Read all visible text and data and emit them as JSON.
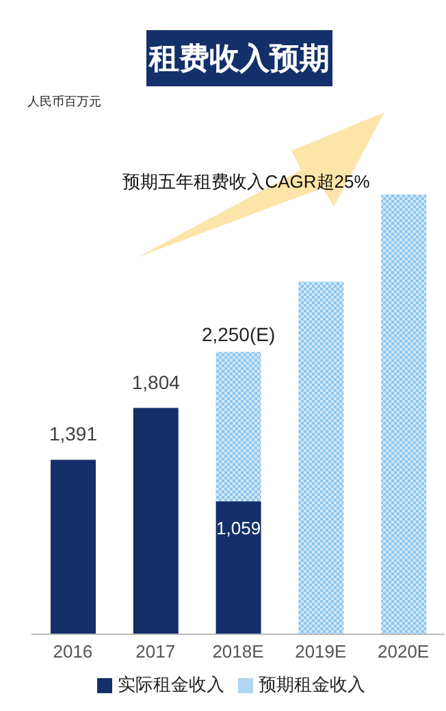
{
  "chart_data": {
    "type": "bar",
    "title": "租费收入预期",
    "stacked": true,
    "categories": [
      "2016",
      "2017",
      "2018E",
      "2019E",
      "2020E"
    ],
    "series": [
      {
        "name": "实际租金收入",
        "color": "#14306a",
        "values": [
          1391,
          1804,
          1059,
          null,
          null
        ],
        "value_labels": [
          "1,391",
          "1,804",
          "1,059",
          null,
          null
        ]
      },
      {
        "name": "预期租金收入",
        "color": "#8fc6ee",
        "values": [
          null,
          null,
          1191,
          2810,
          3505
        ]
      }
    ],
    "totals": [
      null,
      null,
      "2,250(E)",
      null,
      null
    ],
    "annotations": [
      "人民币百万元",
      "预期五年租费收入CAGR超25%"
    ],
    "legend": "bottom"
  }
}
